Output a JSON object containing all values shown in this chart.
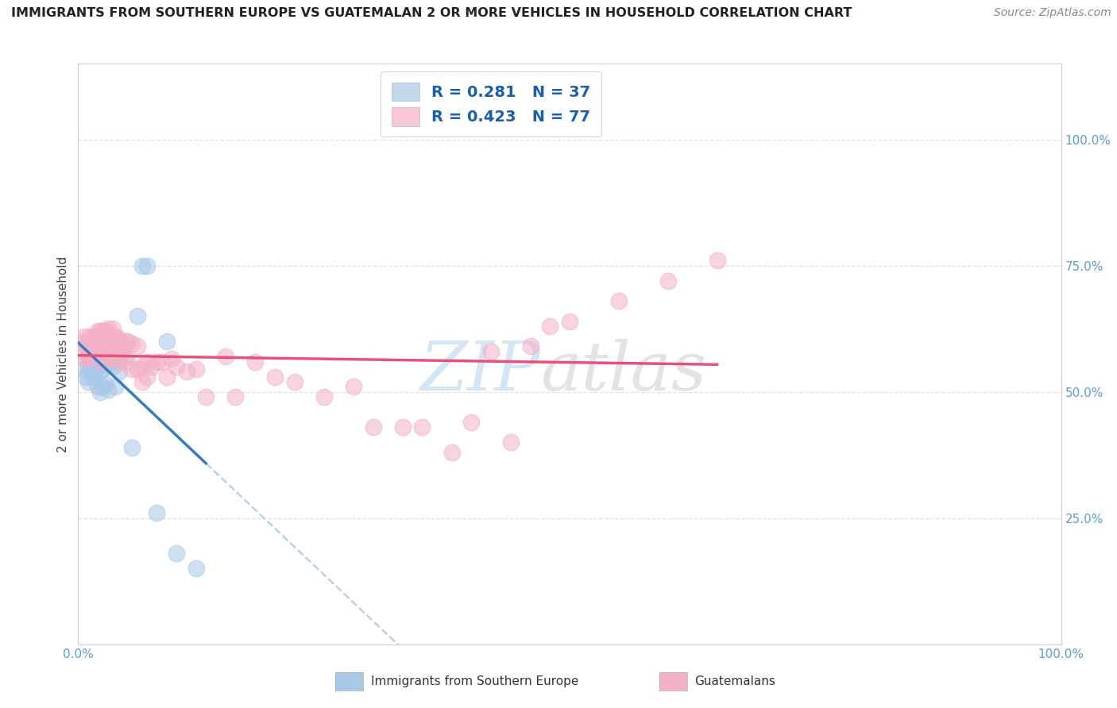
{
  "title": "IMMIGRANTS FROM SOUTHERN EUROPE VS GUATEMALAN 2 OR MORE VEHICLES IN HOUSEHOLD CORRELATION CHART",
  "source": "Source: ZipAtlas.com",
  "ylabel": "2 or more Vehicles in Household",
  "legend_blue_R": "0.281",
  "legend_blue_N": "37",
  "legend_pink_R": "0.423",
  "legend_pink_N": "77",
  "blue_color": "#a8c8e8",
  "pink_color": "#f4b0c8",
  "blue_line_color": "#3a7abf",
  "pink_line_color": "#e8507a",
  "dashed_line_color": "#a0bcd8",
  "watermark_ZIP_color": "#b8d4ec",
  "watermark_atlas_color": "#c8c8c8",
  "tick_color": "#5b9bd5",
  "grid_color": "#e0e0e0",
  "ytick_labels_right": [
    "100.0%",
    "75.0%",
    "50.0%",
    "25.0%"
  ],
  "ytick_right_vals": [
    1.0,
    0.75,
    0.5,
    0.25
  ],
  "blue_x": [
    0.005,
    0.008,
    0.01,
    0.01,
    0.012,
    0.013,
    0.015,
    0.015,
    0.018,
    0.02,
    0.02,
    0.022,
    0.022,
    0.025,
    0.025,
    0.028,
    0.028,
    0.03,
    0.03,
    0.032,
    0.035,
    0.035,
    0.038,
    0.04,
    0.04,
    0.042,
    0.045,
    0.048,
    0.05,
    0.055,
    0.06,
    0.065,
    0.07,
    0.08,
    0.09,
    0.1,
    0.12
  ],
  "blue_y": [
    0.545,
    0.53,
    0.55,
    0.52,
    0.545,
    0.54,
    0.555,
    0.53,
    0.545,
    0.55,
    0.51,
    0.54,
    0.5,
    0.545,
    0.51,
    0.565,
    0.515,
    0.555,
    0.505,
    0.56,
    0.55,
    0.56,
    0.51,
    0.57,
    0.6,
    0.54,
    0.58,
    0.57,
    0.6,
    0.39,
    0.65,
    0.75,
    0.75,
    0.26,
    0.6,
    0.18,
    0.15
  ],
  "pink_x": [
    0.003,
    0.005,
    0.006,
    0.008,
    0.008,
    0.01,
    0.01,
    0.012,
    0.012,
    0.013,
    0.015,
    0.015,
    0.016,
    0.018,
    0.018,
    0.02,
    0.02,
    0.022,
    0.022,
    0.025,
    0.025,
    0.025,
    0.028,
    0.028,
    0.03,
    0.03,
    0.032,
    0.032,
    0.035,
    0.035,
    0.038,
    0.038,
    0.04,
    0.04,
    0.042,
    0.042,
    0.045,
    0.048,
    0.05,
    0.05,
    0.055,
    0.055,
    0.06,
    0.06,
    0.065,
    0.065,
    0.07,
    0.07,
    0.075,
    0.08,
    0.085,
    0.09,
    0.095,
    0.1,
    0.11,
    0.12,
    0.13,
    0.15,
    0.16,
    0.18,
    0.2,
    0.22,
    0.25,
    0.28,
    0.3,
    0.33,
    0.35,
    0.38,
    0.4,
    0.42,
    0.44,
    0.46,
    0.48,
    0.5,
    0.55,
    0.6,
    0.65
  ],
  "pink_y": [
    0.6,
    0.58,
    0.61,
    0.59,
    0.565,
    0.6,
    0.57,
    0.61,
    0.575,
    0.6,
    0.61,
    0.58,
    0.6,
    0.61,
    0.575,
    0.62,
    0.58,
    0.62,
    0.575,
    0.62,
    0.59,
    0.56,
    0.62,
    0.58,
    0.625,
    0.59,
    0.61,
    0.57,
    0.625,
    0.59,
    0.61,
    0.565,
    0.6,
    0.57,
    0.605,
    0.56,
    0.58,
    0.59,
    0.6,
    0.56,
    0.595,
    0.545,
    0.59,
    0.545,
    0.55,
    0.52,
    0.56,
    0.53,
    0.55,
    0.56,
    0.56,
    0.53,
    0.565,
    0.55,
    0.54,
    0.545,
    0.49,
    0.57,
    0.49,
    0.56,
    0.53,
    0.52,
    0.49,
    0.51,
    0.43,
    0.43,
    0.43,
    0.38,
    0.44,
    0.58,
    0.4,
    0.59,
    0.63,
    0.64,
    0.68,
    0.72,
    0.76
  ]
}
